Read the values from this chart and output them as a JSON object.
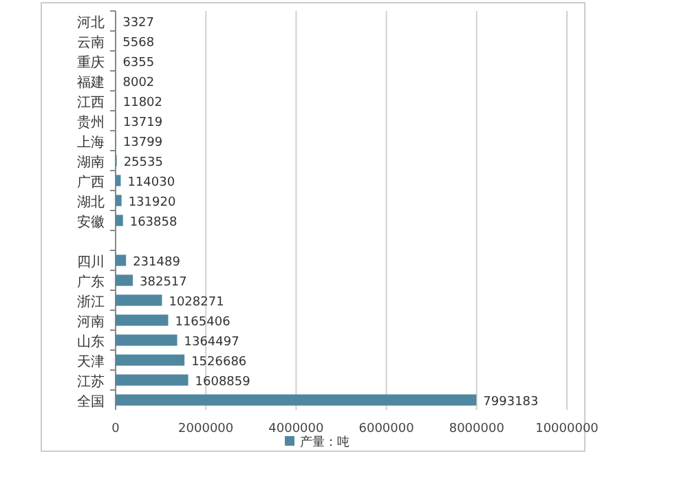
{
  "chart_data": {
    "type": "bar",
    "orientation": "horizontal",
    "categories": [
      "河北",
      "云南",
      "重庆",
      "福建",
      "江西",
      "贵州",
      "上海",
      "湖南",
      "广西",
      "湖北",
      "安徽",
      null,
      "四川",
      "广东",
      "浙江",
      "河南",
      "山东",
      "天津",
      "江苏",
      "全国"
    ],
    "series": [
      {
        "name": "产量：吨",
        "color": "#4f87a0",
        "values": [
          3327,
          5568,
          6355,
          8002,
          11802,
          13719,
          13799,
          25535,
          114030,
          131920,
          163858,
          null,
          231489,
          382517,
          1028271,
          1165406,
          1364497,
          1526686,
          1608859,
          7993183
        ]
      }
    ],
    "xlim": [
      0,
      10000000
    ],
    "xticks": [
      0,
      2000000,
      4000000,
      6000000,
      8000000,
      10000000
    ],
    "grid": "x",
    "data_labels": true,
    "legend": "bottom"
  }
}
